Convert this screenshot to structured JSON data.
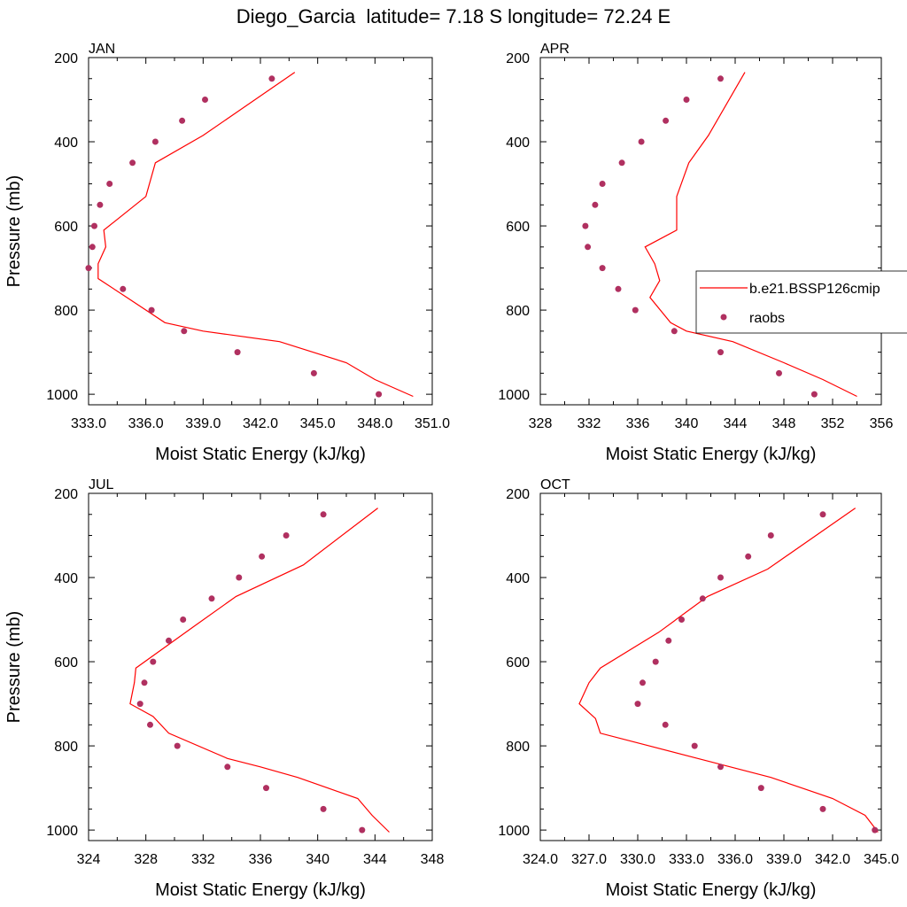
{
  "title": "Diego_Garcia  latitude= 7.18 S longitude= 72.24 E",
  "colors": {
    "model": "#ff0000",
    "obs": "#b03060"
  },
  "legend": {
    "placement": "right of APR panel",
    "model_label": "b.e21.BSSP126cmip",
    "obs_label": "raobs"
  },
  "chart_data": [
    {
      "type": "line+scatter",
      "panel": "JAN",
      "xlabel": "Moist Static Energy (kJ/kg)",
      "ylabel": "Pressure (mb)",
      "xlim": [
        333,
        351
      ],
      "xticks": [
        333,
        336,
        339,
        342,
        345,
        348,
        351
      ],
      "xtick_labels": [
        "333.0",
        "336.0",
        "339.0",
        "342.0",
        "345.0",
        "348.0",
        "351.0"
      ],
      "ylim": [
        1025,
        200
      ],
      "yticks": [
        200,
        400,
        600,
        800,
        1000
      ],
      "ytick_labels": [
        "200",
        "400",
        "600",
        "800",
        "1000"
      ],
      "series": [
        {
          "name": "b.e21.BSSP126cmip",
          "kind": "line",
          "x": [
            350.0,
            348.0,
            346.5,
            343.0,
            339.0,
            337.0,
            335.0,
            333.5,
            333.5,
            333.9,
            333.8,
            336.0,
            336.5,
            339.0,
            343.8
          ],
          "y": [
            1005,
            965,
            925,
            875,
            850,
            830,
            770,
            725,
            690,
            650,
            610,
            530,
            450,
            385,
            235
          ]
        },
        {
          "name": "raobs",
          "kind": "scatter",
          "x": [
            348.2,
            344.8,
            340.8,
            338.0,
            336.3,
            334.8,
            333.0,
            333.2,
            333.3,
            333.6,
            334.1,
            335.3,
            336.5,
            337.9,
            339.1,
            342.6
          ],
          "y": [
            1000,
            950,
            900,
            850,
            800,
            750,
            700,
            650,
            600,
            550,
            500,
            450,
            400,
            350,
            300,
            250
          ]
        }
      ]
    },
    {
      "type": "line+scatter",
      "panel": "APR",
      "xlabel": "Moist Static Energy (kJ/kg)",
      "ylabel": "",
      "xlim": [
        328,
        356
      ],
      "xticks": [
        328,
        332,
        336,
        340,
        344,
        348,
        352,
        356
      ],
      "xtick_labels": [
        "328",
        "332",
        "336",
        "340",
        "344",
        "348",
        "352",
        "356"
      ],
      "ylim": [
        1025,
        200
      ],
      "yticks": [
        200,
        400,
        600,
        800,
        1000
      ],
      "ytick_labels": [
        "200",
        "400",
        "600",
        "800",
        "1000"
      ],
      "series": [
        {
          "name": "b.e21.BSSP126cmip",
          "kind": "line",
          "x": [
            354.0,
            351.2,
            348.0,
            343.8,
            340.0,
            338.7,
            337.0,
            337.8,
            337.4,
            336.6,
            339.2,
            339.2,
            340.2,
            341.8,
            344.8
          ],
          "y": [
            1005,
            965,
            925,
            875,
            850,
            830,
            770,
            730,
            690,
            650,
            610,
            530,
            450,
            385,
            235
          ]
        },
        {
          "name": "raobs",
          "kind": "scatter",
          "x": [
            350.5,
            347.6,
            342.8,
            339.0,
            335.8,
            334.4,
            333.1,
            331.9,
            331.7,
            332.5,
            333.1,
            334.7,
            336.3,
            338.3,
            340.0,
            342.8
          ],
          "y": [
            1000,
            950,
            900,
            850,
            800,
            750,
            700,
            650,
            600,
            550,
            500,
            450,
            400,
            350,
            300,
            250
          ]
        }
      ]
    },
    {
      "type": "line+scatter",
      "panel": "JUL",
      "xlabel": "Moist Static Energy (kJ/kg)",
      "ylabel": "Pressure (mb)",
      "xlim": [
        324,
        348
      ],
      "xticks": [
        324,
        328,
        332,
        336,
        340,
        344,
        348
      ],
      "xtick_labels": [
        "324",
        "328",
        "332",
        "336",
        "340",
        "344",
        "348"
      ],
      "ylim": [
        1025,
        200
      ],
      "yticks": [
        200,
        400,
        600,
        800,
        1000
      ],
      "ytick_labels": [
        "200",
        "400",
        "600",
        "800",
        "1000"
      ],
      "series": [
        {
          "name": "b.e21.BSSP126cmip",
          "kind": "line",
          "x": [
            345.0,
            343.8,
            342.8,
            338.6,
            336.0,
            333.7,
            329.6,
            328.5,
            326.9,
            327.2,
            327.3,
            331.4,
            334.3,
            339.0,
            344.2
          ],
          "y": [
            1005,
            965,
            925,
            875,
            850,
            830,
            770,
            730,
            700,
            650,
            615,
            515,
            445,
            370,
            235
          ]
        },
        {
          "name": "raobs",
          "kind": "scatter",
          "x": [
            343.1,
            340.4,
            336.4,
            333.7,
            330.2,
            328.3,
            327.6,
            327.9,
            328.5,
            329.6,
            330.6,
            332.6,
            334.5,
            336.1,
            337.8,
            340.4
          ],
          "y": [
            1000,
            950,
            900,
            850,
            800,
            750,
            700,
            650,
            600,
            550,
            500,
            450,
            400,
            350,
            300,
            250
          ]
        }
      ]
    },
    {
      "type": "line+scatter",
      "panel": "OCT",
      "xlabel": "Moist Static Energy (kJ/kg)",
      "ylabel": "",
      "xlim": [
        324,
        345
      ],
      "xticks": [
        324,
        327,
        330,
        333,
        336,
        339,
        342,
        345
      ],
      "xtick_labels": [
        "324.0",
        "327.0",
        "330.0",
        "333.0",
        "336.0",
        "339.0",
        "342.0",
        "345.0"
      ],
      "ylim": [
        1025,
        200
      ],
      "yticks": [
        200,
        400,
        600,
        800,
        1000
      ],
      "ytick_labels": [
        "200",
        "400",
        "600",
        "800",
        "1000"
      ],
      "series": [
        {
          "name": "b.e21.BSSP126cmip",
          "kind": "line",
          "x": [
            344.8,
            344.0,
            342.0,
            338.2,
            335.7,
            333.7,
            327.7,
            327.4,
            326.4,
            327.0,
            327.7,
            331.3,
            334.3,
            338.0,
            343.4
          ],
          "y": [
            1005,
            965,
            925,
            875,
            850,
            830,
            770,
            735,
            700,
            650,
            615,
            530,
            445,
            380,
            235
          ]
        },
        {
          "name": "raobs",
          "kind": "scatter",
          "x": [
            344.6,
            341.4,
            337.6,
            335.1,
            333.5,
            331.7,
            330.0,
            330.3,
            331.1,
            331.9,
            332.7,
            334.0,
            335.1,
            336.8,
            338.2,
            341.4
          ],
          "y": [
            1000,
            950,
            900,
            850,
            800,
            750,
            700,
            650,
            600,
            550,
            500,
            450,
            400,
            350,
            300,
            250
          ]
        }
      ]
    }
  ]
}
